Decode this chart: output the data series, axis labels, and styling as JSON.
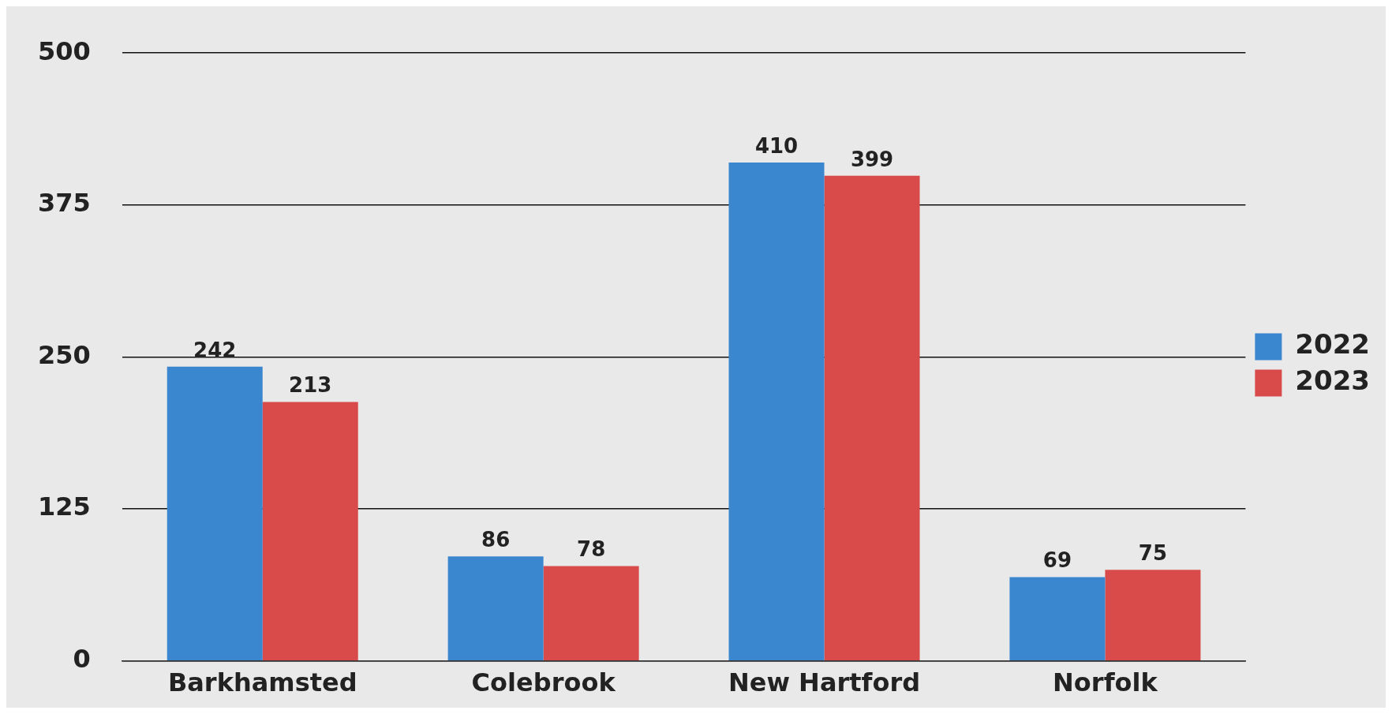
{
  "chart_data": {
    "type": "bar",
    "categories": [
      "Barkhamsted",
      "Colebrook",
      "New Hartford",
      "Norfolk"
    ],
    "series": [
      {
        "name": "2022",
        "color": "#3a86cf",
        "values": [
          242,
          86,
          410,
          69
        ]
      },
      {
        "name": "2023",
        "color": "#d94b4b",
        "values": [
          213,
          78,
          399,
          75
        ]
      }
    ],
    "ylim": [
      0,
      500
    ],
    "yticks": [
      0,
      125,
      250,
      375,
      500
    ],
    "grid": "y",
    "legend": "right",
    "data_labels": true
  }
}
